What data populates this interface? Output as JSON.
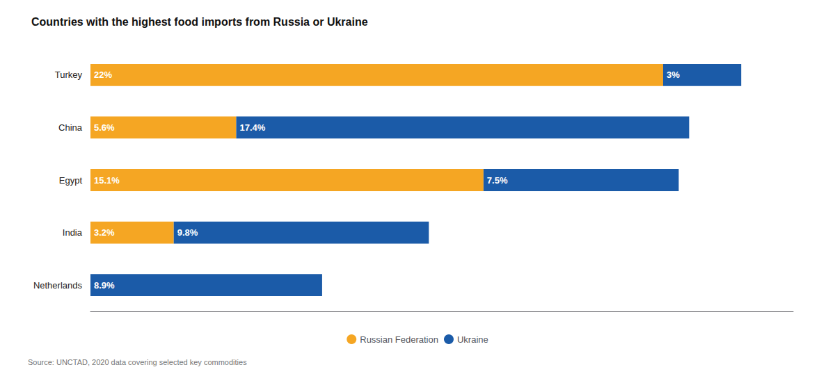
{
  "chart_data": {
    "type": "bar",
    "orientation": "horizontal",
    "stacked": true,
    "title": "Countries with the highest food imports from Russia or Ukraine",
    "annotations": [
      "Source: UNCTAD, 2020 data covering selected key commodities"
    ],
    "categories": [
      "Turkey",
      "China",
      "Egypt",
      "India",
      "Netherlands"
    ],
    "series": [
      {
        "name": "Russian Federation",
        "color": "#F5A623",
        "values": [
          22.0,
          5.6,
          15.1,
          3.2,
          0.0
        ],
        "value_labels": [
          "22%",
          "5.6%",
          "15.1%",
          "3.2%",
          null
        ]
      },
      {
        "name": "Ukraine",
        "color": "#1B5BA8",
        "values": [
          3.0,
          17.4,
          7.5,
          9.8,
          8.9
        ],
        "value_labels": [
          "3%",
          "17.4%",
          "7.5%",
          "9.8%",
          "8.9%"
        ]
      }
    ],
    "xlim": [
      0,
      27
    ],
    "data_labels": true,
    "tick_labels": "y",
    "grid": false,
    "legend": "bottom"
  }
}
